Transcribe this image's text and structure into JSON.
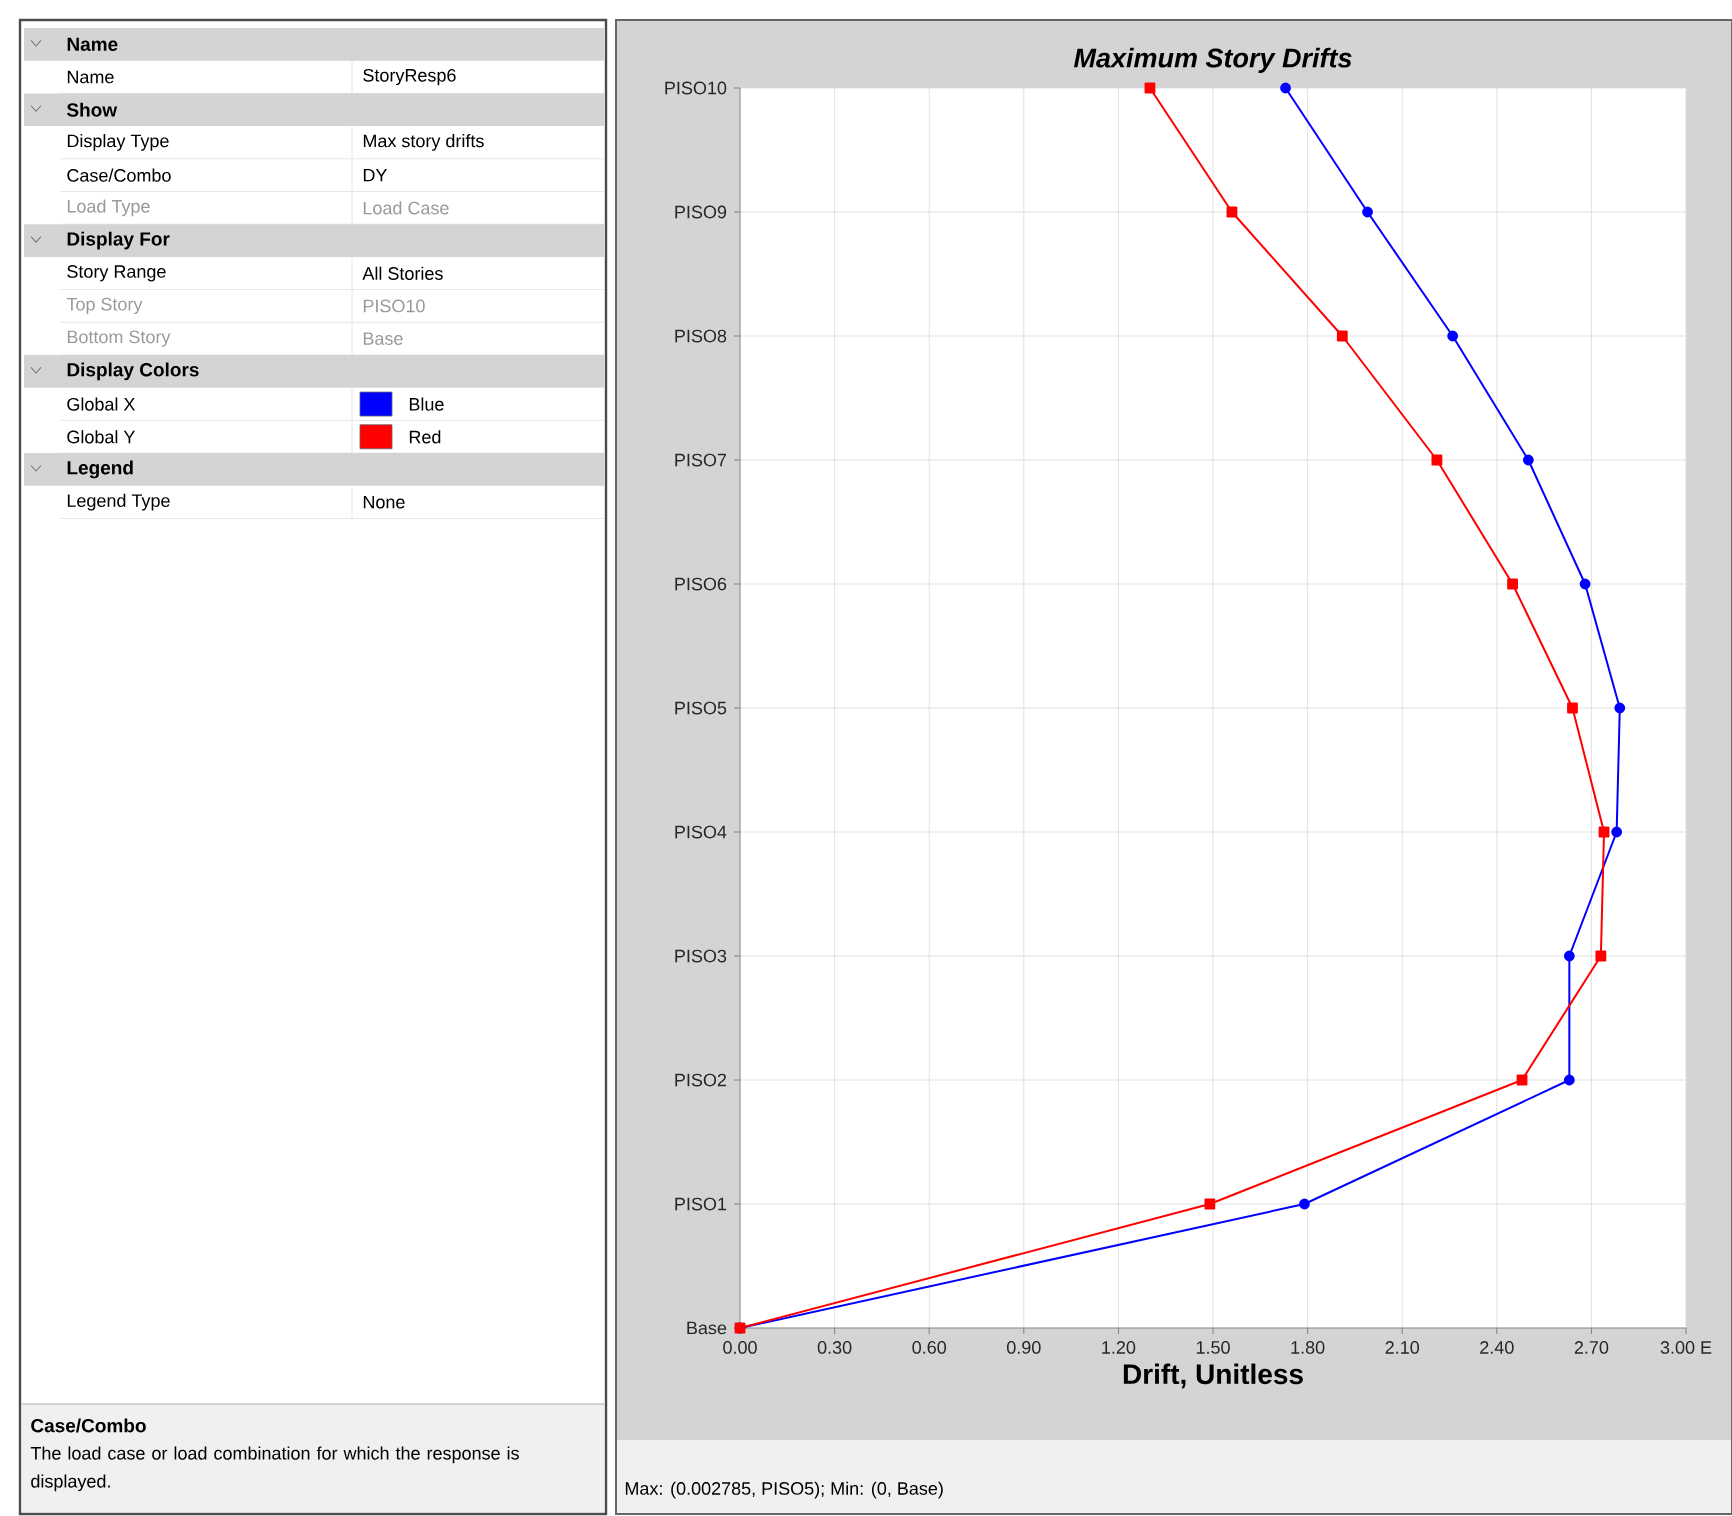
{
  "chart_data": [
    {
      "type": "other",
      "annotations": [
        "Name",
        "Name",
        "StoryResp6",
        "Show",
        "Display Type",
        "Max story drifts",
        "Case/Combo",
        "DY",
        "Load Type",
        "Load Case",
        "Display For",
        "Story Range",
        "All Stories",
        "Top Story",
        "PISO10",
        "Bottom Story",
        "Base",
        "Display Colors",
        "Global X",
        "Blue",
        "Global Y",
        "Red",
        "Legend",
        "Legend Type",
        "None",
        "Case/Combo",
        "The load case or load combination for which the response is displayed."
      ],
      "colors": [
        "#0000ff",
        "#ff0000"
      ]
    },
    {
      "type": "line",
      "orientation": "horizontal",
      "title": "Maximum Story Drifts",
      "xlabel": "Drift, Unitless",
      "categories": [
        "PISO10",
        "PISO9",
        "PISO8",
        "PISO7",
        "PISO6",
        "PISO5",
        "PISO4",
        "PISO3",
        "PISO2",
        "PISO1",
        "Base"
      ],
      "series": [
        {
          "color": "#0000ff",
          "marker": "circle",
          "values": [
            1.73,
            1.99,
            2.26,
            2.5,
            2.68,
            2.79,
            2.78,
            2.63,
            2.63,
            1.79,
            0
          ]
        },
        {
          "color": "#ff0000",
          "marker": "square",
          "values": [
            1.3,
            1.56,
            1.91,
            2.21,
            2.45,
            2.64,
            2.74,
            2.73,
            2.48,
            1.49,
            0
          ]
        }
      ],
      "xlim": [
        0,
        3
      ],
      "xticks": [
        {
          "value": 0,
          "label": "0.00"
        },
        {
          "value": 0.3,
          "label": "0.30"
        },
        {
          "value": 0.6,
          "label": "0.60"
        },
        {
          "value": 0.9,
          "label": "0.90"
        },
        {
          "value": 1.2,
          "label": "1.20"
        },
        {
          "value": 1.5,
          "label": "1.50"
        },
        {
          "value": 1.8,
          "label": "1.80"
        },
        {
          "value": 2.1,
          "label": "2.10"
        },
        {
          "value": 2.4,
          "label": "2.40"
        },
        {
          "value": 2.7,
          "label": "2.70"
        },
        {
          "value": 3,
          "label": "3.00 E"
        }
      ],
      "grid": true,
      "annotations": [
        "Max: (0.002785, PISO5);   Min: (0, Base)"
      ]
    }
  ]
}
